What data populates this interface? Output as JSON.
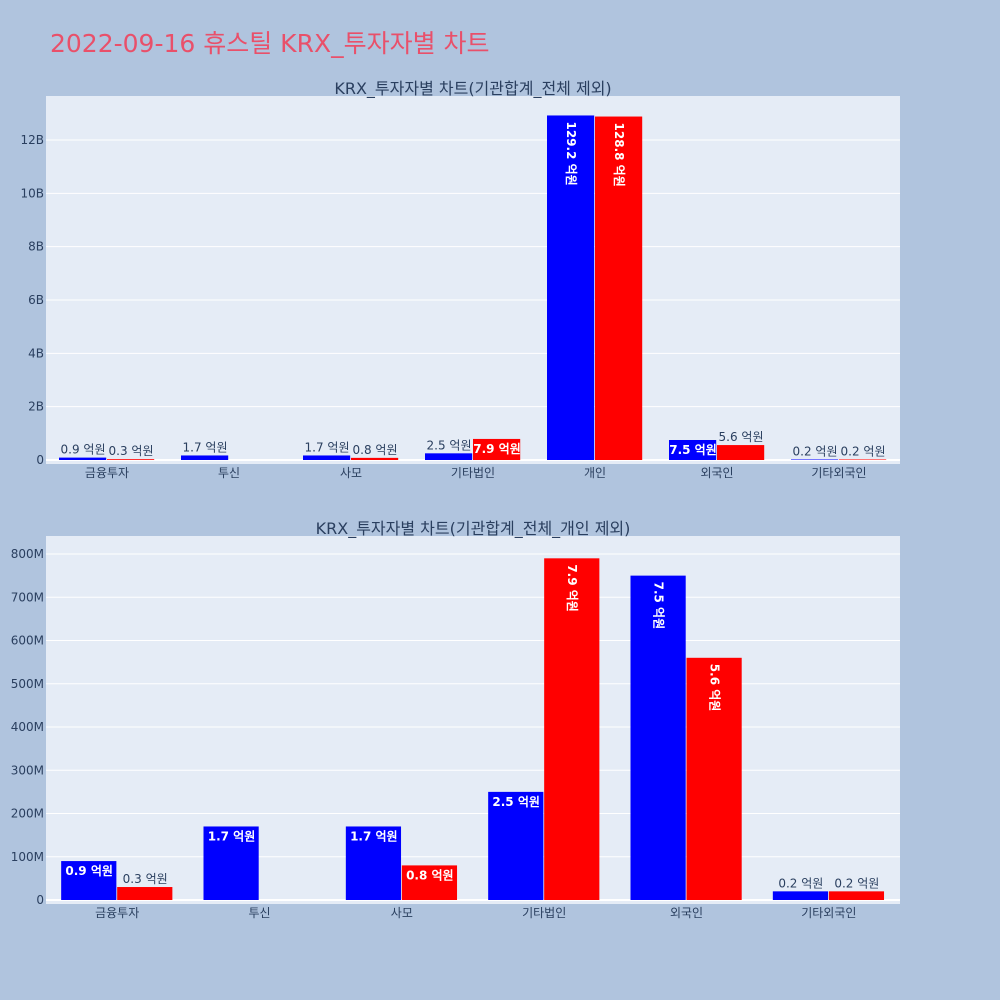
{
  "title": "2022-09-16 휴스틸 KRX_투자자별 차트",
  "chart_data": [
    {
      "type": "bar",
      "title": "KRX_투자자별 차트(기관합계_전체 제외)",
      "categories": [
        "금융투자",
        "투신",
        "사모",
        "기타법인",
        "개인",
        "외국인",
        "기타외국인"
      ],
      "series": [
        {
          "color": "#0000ff",
          "values": [
            90000000,
            170000000,
            170000000,
            250000000,
            12920000000,
            750000000,
            20000000
          ],
          "labels": [
            "0.9 억원",
            "1.7 억원",
            "1.7 억원",
            "2.5 억원",
            "129.2 억원",
            "7.5 억원",
            "0.2 억원"
          ]
        },
        {
          "color": "#ff0000",
          "values": [
            30000000,
            null,
            80000000,
            790000000,
            12880000000,
            560000000,
            20000000
          ],
          "labels": [
            "0.3 억원",
            "",
            "0.8 억원",
            "7.9 억원",
            "128.8 억원",
            "5.6 억원",
            "0.2 억원"
          ]
        }
      ],
      "yticks": [
        0,
        2000000000,
        4000000000,
        6000000000,
        8000000000,
        10000000000,
        12000000000
      ],
      "ytick_labels": [
        "0",
        "2B",
        "4B",
        "6B",
        "8B",
        "10B",
        "12B"
      ],
      "ylim": [
        0,
        13000000000
      ],
      "grid": true,
      "legend": "none"
    },
    {
      "type": "bar",
      "title": "KRX_투자자별 차트(기관합계_전체_개인 제외)",
      "categories": [
        "금융투자",
        "투신",
        "사모",
        "기타법인",
        "외국인",
        "기타외국인"
      ],
      "series": [
        {
          "color": "#0000ff",
          "values": [
            90000000,
            170000000,
            170000000,
            250000000,
            750000000,
            20000000
          ],
          "labels": [
            "0.9 억원",
            "1.7 억원",
            "1.7 억원",
            "2.5 억원",
            "7.5 억원",
            "0.2 억원"
          ]
        },
        {
          "color": "#ff0000",
          "values": [
            30000000,
            null,
            80000000,
            790000000,
            560000000,
            20000000
          ],
          "labels": [
            "0.3 억원",
            "",
            "0.8 억원",
            "7.9 억원",
            "5.6 억원",
            "0.2 억원"
          ]
        }
      ],
      "yticks": [
        0,
        100000000,
        200000000,
        300000000,
        400000000,
        500000000,
        600000000,
        700000000,
        800000000
      ],
      "ytick_labels": [
        "0",
        "100M",
        "200M",
        "300M",
        "400M",
        "500M",
        "600M",
        "700M",
        "800M"
      ],
      "ylim": [
        0,
        840000000
      ],
      "grid": true,
      "legend": "none"
    }
  ]
}
